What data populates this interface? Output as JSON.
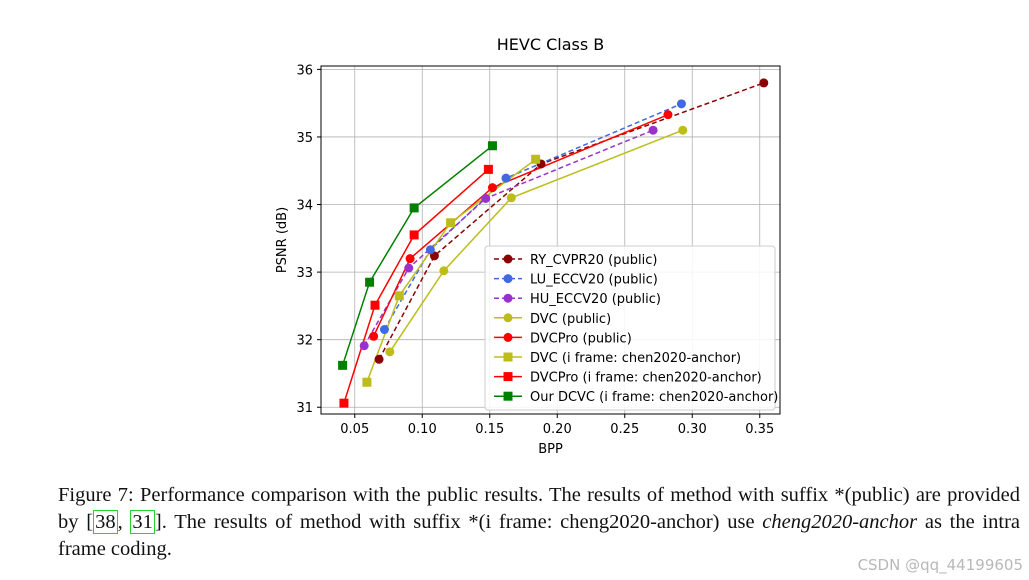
{
  "chart_data": {
    "type": "line",
    "title": "HEVC Class B",
    "xlabel": "BPP",
    "ylabel": "PSNR (dB)",
    "xlim": [
      0.025,
      0.365
    ],
    "ylim": [
      30.9,
      36.05
    ],
    "xticks": [
      0.05,
      0.1,
      0.15,
      0.2,
      0.25,
      0.3,
      0.35
    ],
    "xtick_labels": [
      "0.05",
      "0.10",
      "0.15",
      "0.20",
      "0.25",
      "0.30",
      "0.35"
    ],
    "yticks": [
      31,
      32,
      33,
      34,
      35,
      36
    ],
    "ytick_labels": [
      "31",
      "32",
      "33",
      "34",
      "35",
      "36"
    ],
    "grid": true,
    "legend_position": "lower-right",
    "series": [
      {
        "name": "RY_CVPR20 (public)",
        "color": "#8b0000",
        "marker": "circle",
        "dashed": true,
        "x": [
          0.068,
          0.109,
          0.188,
          0.353
        ],
        "y": [
          31.71,
          33.24,
          34.6,
          35.8
        ]
      },
      {
        "name": "LU_ECCV20 (public)",
        "color": "#4169e1",
        "marker": "circle",
        "dashed": true,
        "x": [
          0.072,
          0.106,
          0.162,
          0.292
        ],
        "y": [
          32.15,
          33.33,
          34.39,
          35.49
        ]
      },
      {
        "name": "HU_ECCV20 (public)",
        "color": "#9932cc",
        "marker": "circle",
        "dashed": true,
        "x": [
          0.057,
          0.09,
          0.147,
          0.271
        ],
        "y": [
          31.91,
          33.06,
          34.09,
          35.1
        ]
      },
      {
        "name": "DVC (public)",
        "color": "#bdbd1a",
        "marker": "circle",
        "dashed": false,
        "x": [
          0.076,
          0.116,
          0.166,
          0.293
        ],
        "y": [
          31.82,
          33.02,
          34.1,
          35.1
        ]
      },
      {
        "name": "DVCPro (public)",
        "color": "#ff0000",
        "marker": "circle",
        "dashed": false,
        "x": [
          0.064,
          0.091,
          0.152,
          0.282
        ],
        "y": [
          32.05,
          33.2,
          34.25,
          35.33
        ]
      },
      {
        "name": "DVC (i frame: chen2020-anchor)",
        "color": "#bdbd1a",
        "marker": "square",
        "dashed": false,
        "x": [
          0.059,
          0.083,
          0.121,
          0.184
        ],
        "y": [
          31.37,
          32.65,
          33.73,
          34.67
        ]
      },
      {
        "name": "DVCPro (i frame: chen2020-anchor)",
        "color": "#ff0000",
        "marker": "square",
        "dashed": false,
        "x": [
          0.042,
          0.065,
          0.094,
          0.149
        ],
        "y": [
          31.06,
          32.51,
          33.55,
          34.52
        ]
      },
      {
        "name": "Our DCVC (i frame: chen2020-anchor)",
        "color": "#008000",
        "marker": "square",
        "dashed": false,
        "x": [
          0.041,
          0.061,
          0.094,
          0.152
        ],
        "y": [
          31.62,
          32.85,
          33.95,
          34.87
        ]
      }
    ]
  },
  "caption": {
    "part1": "Figure 7: Performance comparison with the public results. The results of method with suffix *(public) are provided by [",
    "cite1": "38",
    "sep": ", ",
    "cite2": "31",
    "part2": "].  The results of method with suffix *(i frame:  cheng2020-anchor) use ",
    "italic": "cheng2020-anchor",
    "part3": " as the intra frame coding."
  },
  "watermark": "CSDN @qq_44199605"
}
